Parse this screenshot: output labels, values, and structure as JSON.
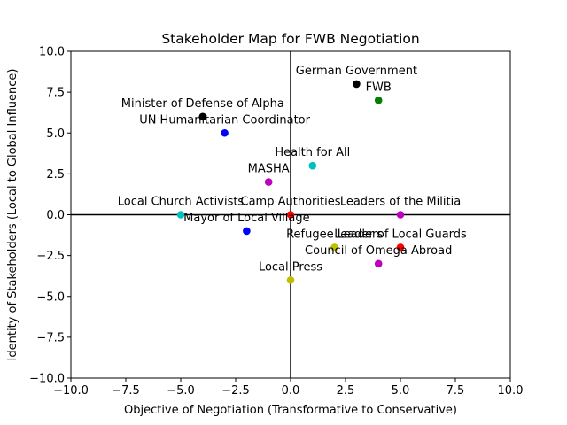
{
  "chart_data": {
    "type": "scatter",
    "title": "Stakeholder Map for FWB Negotiation",
    "xlabel": "Objective of Negotiation (Transformative to Conservative)",
    "ylabel": "Identity of Stakeholders (Local to Global Influence)",
    "xlim": [
      -10,
      10
    ],
    "ylim": [
      -10,
      10
    ],
    "xticks": [
      -10,
      -7.5,
      -5,
      -2.5,
      0,
      2.5,
      5,
      7.5,
      10
    ],
    "yticks": [
      -10,
      -7.5,
      -5,
      -2.5,
      0,
      2.5,
      5,
      7.5,
      10
    ],
    "xtick_labels": [
      "−10.0",
      "−7.5",
      "−5.0",
      "−2.5",
      "0.0",
      "2.5",
      "5.0",
      "7.5",
      "10.0"
    ],
    "ytick_labels": [
      "−10.0",
      "−7.5",
      "−5.0",
      "−2.5",
      "0.0",
      "2.5",
      "5.0",
      "7.5",
      "10.0"
    ],
    "grid": false,
    "reference_lines": {
      "x": 0,
      "y": 0
    },
    "points": [
      {
        "label": "German Government",
        "x": 3,
        "y": 8,
        "color": "#000000",
        "label_pos": "above"
      },
      {
        "label": "FWB",
        "x": 4,
        "y": 7,
        "color": "#008000",
        "label_pos": "above"
      },
      {
        "label": "Minister of Defense of Alpha",
        "x": -4,
        "y": 6,
        "color": "#000000",
        "label_pos": "above"
      },
      {
        "label": "UN Humanitarian Coordinator",
        "x": -3,
        "y": 5,
        "color": "#0000ff",
        "label_pos": "above"
      },
      {
        "label": "Health for All",
        "x": 1,
        "y": 3,
        "color": "#00bfbf",
        "label_pos": "above"
      },
      {
        "label": "MASHA",
        "x": -1,
        "y": 2,
        "color": "#bf00bf",
        "label_pos": "above"
      },
      {
        "label": "Local Church Activists",
        "x": -5,
        "y": 0,
        "color": "#00bfbf",
        "label_pos": "above"
      },
      {
        "label": "Camp Authorities",
        "x": 0,
        "y": 0,
        "color": "#ff0000",
        "label_pos": "above"
      },
      {
        "label": "Leaders of the Militia",
        "x": 5,
        "y": 0,
        "color": "#bf00bf",
        "label_pos": "above"
      },
      {
        "label": "Mayor of Local Village",
        "x": -2,
        "y": -1,
        "color": "#0000ff",
        "label_pos": "above"
      },
      {
        "label": "Refugee Leaders",
        "x": 2,
        "y": -2,
        "color": "#bfbf00",
        "label_pos": "above"
      },
      {
        "label": "Leader of Local Guards",
        "x": 5,
        "y": -2,
        "color": "#ff0000",
        "label_pos": "above"
      },
      {
        "label": "Council of Omega Abroad",
        "x": 4,
        "y": -3,
        "color": "#bf00bf",
        "label_pos": "above"
      },
      {
        "label": "Local Press",
        "x": 0,
        "y": -4,
        "color": "#bfbf00",
        "label_pos": "above"
      }
    ]
  }
}
